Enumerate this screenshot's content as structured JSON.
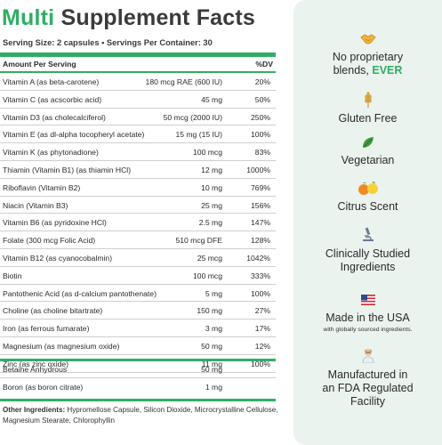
{
  "title": {
    "word1": "Multi",
    "rest": "Supplement Facts"
  },
  "serving": "Serving Size: 2 capsules • Servings Per Container: 30",
  "header": {
    "amount": "Amount Per Serving",
    "dv": "%DV"
  },
  "nutrients": [
    {
      "name": "Vitamin A (as beta-carotene)",
      "amount": "180 mcg RAE (600 IU)",
      "dv": "20%"
    },
    {
      "name": "Vitamin C (as acscorbic acid)",
      "amount": "45 mg",
      "dv": "50%"
    },
    {
      "name": "Vitamin D3 (as cholecalciferol)",
      "amount": "50 mcg (2000 IU)",
      "dv": "250%"
    },
    {
      "name": "Vitamin E (as dl-alpha tocopheryl acetate)",
      "amount": "15 mg (15 IU)",
      "dv": "100%"
    },
    {
      "name": "Vitamin K (as phytonadione)",
      "amount": "100 mcg",
      "dv": "83%"
    },
    {
      "name": "Thiamin (Vitamin B1) (as thiamin HCl)",
      "amount": "12 mg",
      "dv": "1000%"
    },
    {
      "name": "Riboflavin (Vitamin B2)",
      "amount": "10 mg",
      "dv": "769%"
    },
    {
      "name": "Niacin (Vitamin B3)",
      "amount": "25 mg",
      "dv": "156%"
    },
    {
      "name": "Vitamin B6 (as pyridoxine HCl)",
      "amount": "2.5 mg",
      "dv": "147%"
    },
    {
      "name": "Folate (300 mcg Folic Acid)",
      "amount": "510 mcg DFE",
      "dv": "128%"
    },
    {
      "name": "Vitamin B12 (as cyanocobalmin)",
      "amount": "25 mcg",
      "dv": "1042%"
    },
    {
      "name": "Biotin",
      "amount": "100 mcg",
      "dv": "333%"
    },
    {
      "name": "Pantothenic Acid (as d-calcium pantothenate)",
      "amount": "5 mg",
      "dv": "100%"
    },
    {
      "name": "Choline (as choline bitartrate)",
      "amount": "150 mg",
      "dv": "27%"
    },
    {
      "name": "Iron (as ferrous fumarate)",
      "amount": "3 mg",
      "dv": "17%"
    },
    {
      "name": "Magnesium (as magnesium oxide)",
      "amount": "50 mg",
      "dv": "12%"
    },
    {
      "name": "Zinc (as zinc oxide)",
      "amount": "11 mg",
      "dv": "100%"
    }
  ],
  "extras": [
    {
      "name": "Betaine Anhydrous",
      "amount": "50 mg"
    },
    {
      "name": "Boron (as boron citrate)",
      "amount": "1 mg"
    }
  ],
  "other_ingredients": {
    "label": "Other Ingredients:",
    "text": "Hypromellose Capsule, Silicon Dioxide, Microcrystalline Cellulose, Magnesium Stearate, Chlorophyllin"
  },
  "features": {
    "proprietary": {
      "line1": "No proprietary",
      "line2": "blends,",
      "ever": "EVER",
      "icon": "handshake-icon"
    },
    "gluten": {
      "label": "Gluten Free",
      "icon": "wheat-icon"
    },
    "vegetarian": {
      "label": "Vegetarian",
      "icon": "leaf-icon"
    },
    "citrus": {
      "label": "Citrus Scent",
      "icon": "citrus-icon"
    },
    "studied": {
      "line1": "Clinically Studied",
      "line2": "Ingredients",
      "icon": "microscope-icon"
    },
    "usa": {
      "label": "Made in the USA",
      "sub": "with globally sourced ingredients.",
      "icon": "us-flag-icon"
    },
    "fda": {
      "line1": "Manufactured in",
      "line2": "an FDA Regulated",
      "line3": "Facility",
      "icon": "scientist-icon"
    }
  },
  "colors": {
    "accent": "#2fae64",
    "panel": "#ebf3ee"
  }
}
